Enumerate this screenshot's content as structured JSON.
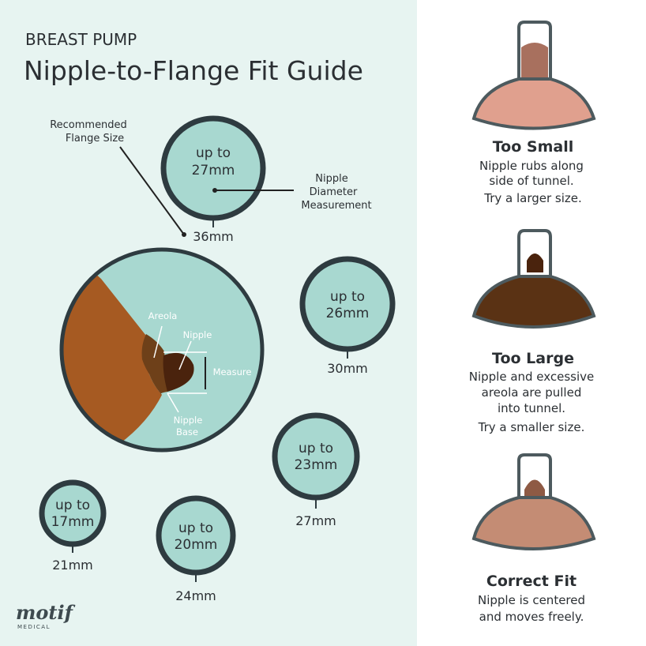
{
  "header": {
    "kicker": "BREAST PUMP",
    "title": "Nipple-to-Flange Fit Guide"
  },
  "callouts": {
    "recommended": [
      "Recommended",
      "Flange Size"
    ],
    "diameter": [
      "Nipple",
      "Diameter",
      "Measurement"
    ]
  },
  "sizes": [
    {
      "nipple": [
        "up to",
        "27mm"
      ],
      "flange": "36mm"
    },
    {
      "nipple": [
        "up to",
        "26mm"
      ],
      "flange": "30mm"
    },
    {
      "nipple": [
        "up to",
        "23mm"
      ],
      "flange": "27mm"
    },
    {
      "nipple": [
        "up to",
        "17mm"
      ],
      "flange": "21mm"
    },
    {
      "nipple": [
        "up to",
        "20mm"
      ],
      "flange": "24mm"
    }
  ],
  "anatomy": {
    "areola": "Areola",
    "nipple": "Nipple",
    "measure": "Measure",
    "base": [
      "Nipple",
      "Base"
    ]
  },
  "fits": [
    {
      "title": "Too Small",
      "lines": [
        "Nipple rubs along",
        "side of tunnel.",
        "Try a larger size."
      ],
      "color": "#e0a08e"
    },
    {
      "title": "Too Large",
      "lines": [
        "Nipple and excessive",
        "areola are pulled",
        "into tunnel.",
        "Try a smaller size."
      ],
      "color": "#5a3214"
    },
    {
      "title": "Correct Fit",
      "lines": [
        "Nipple is centered",
        "and moves freely."
      ],
      "color": "#c48c74"
    }
  ],
  "logo": {
    "name": "motif",
    "sub": "MEDICAL"
  },
  "colors": {
    "background": "#e7f4f1",
    "circle_fill": "#a8d8d0",
    "circle_stroke": "#2e3b40",
    "skin": "#a65a22",
    "areola": "#6e4019",
    "nipple": "#4a230d"
  }
}
